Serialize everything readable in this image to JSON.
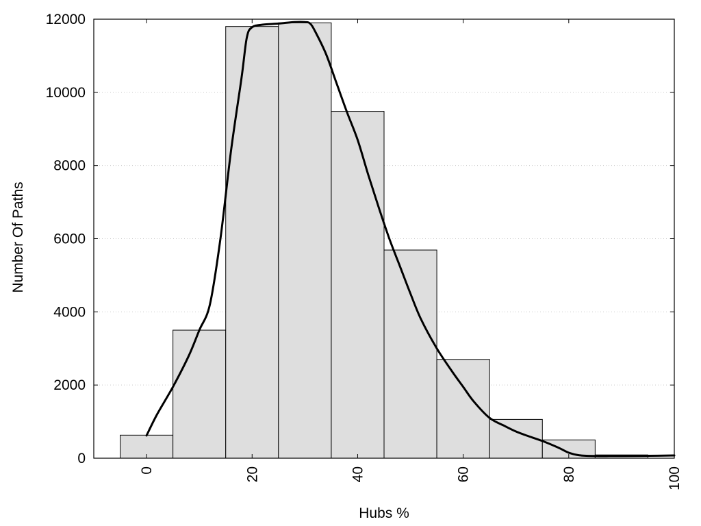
{
  "chart_data": {
    "type": "bar",
    "xlabel": "Hubs %",
    "ylabel": "Number Of Paths",
    "xlim": [
      -10,
      100
    ],
    "ylim": [
      0,
      12000
    ],
    "x_ticks": [
      0,
      20,
      40,
      60,
      80,
      100
    ],
    "y_ticks": [
      0,
      2000,
      4000,
      6000,
      8000,
      10000,
      12000
    ],
    "grid": "horizontal dotted",
    "bin_width": 10,
    "bar_color": "#dedede",
    "line_color": "#000000",
    "categories": [
      0,
      10,
      20,
      30,
      40,
      50,
      60,
      70,
      80,
      90
    ],
    "values": [
      630,
      3500,
      11800,
      11900,
      9480,
      5690,
      2700,
      1060,
      500,
      90
    ],
    "curve": {
      "x": [
        0,
        2,
        5,
        8,
        10,
        12,
        14,
        16,
        18,
        19,
        20,
        22,
        25,
        28,
        30,
        31,
        32,
        34,
        36,
        38,
        40,
        42,
        44,
        46,
        48,
        50,
        52,
        55,
        58,
        60,
        62,
        65,
        68,
        70,
        72,
        75,
        78,
        80,
        82,
        85,
        88,
        90,
        95,
        100
      ],
      "y": [
        620,
        1200,
        1950,
        2800,
        3500,
        4200,
        6000,
        8400,
        10400,
        11500,
        11780,
        11850,
        11880,
        11920,
        11920,
        11880,
        11650,
        11050,
        10250,
        9450,
        8700,
        7750,
        6850,
        6000,
        5250,
        4500,
        3800,
        3000,
        2350,
        1950,
        1550,
        1100,
        870,
        730,
        620,
        470,
        290,
        150,
        80,
        60,
        60,
        60,
        65,
        75
      ]
    }
  }
}
